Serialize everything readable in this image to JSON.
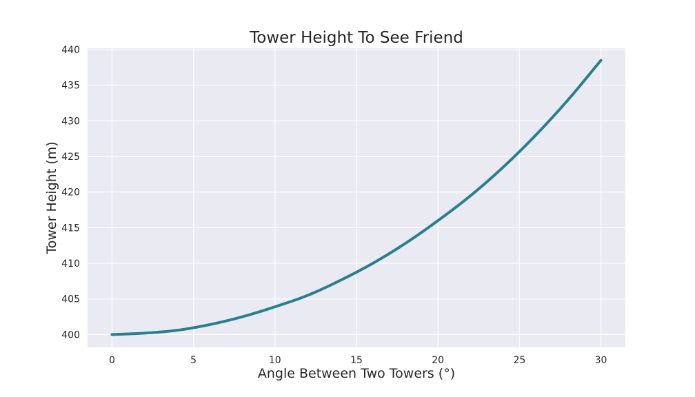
{
  "chart_data": {
    "type": "line",
    "title": "Tower Height To See Friend",
    "xlabel": "Angle Between Two Towers (°)",
    "ylabel": "Tower Height (m)",
    "xlim": [
      -1.5,
      31.5
    ],
    "ylim": [
      398.2,
      440.2
    ],
    "x_ticks": [
      0,
      5,
      10,
      15,
      20,
      25,
      30
    ],
    "y_ticks": [
      400,
      405,
      410,
      415,
      420,
      425,
      430,
      435,
      440
    ],
    "grid": true,
    "background_color": "#eaeaf2",
    "series": [
      {
        "color": "#2a7f8f",
        "x": [
          0,
          2,
          4,
          6,
          8,
          10,
          12,
          14,
          16,
          18,
          20,
          22,
          24,
          26,
          28,
          30
        ],
        "y": [
          400.0,
          400.2,
          400.6,
          401.4,
          402.5,
          403.9,
          405.5,
          407.6,
          410.0,
          412.8,
          416.0,
          419.5,
          423.5,
          428.0,
          433.0,
          438.5
        ]
      }
    ]
  }
}
